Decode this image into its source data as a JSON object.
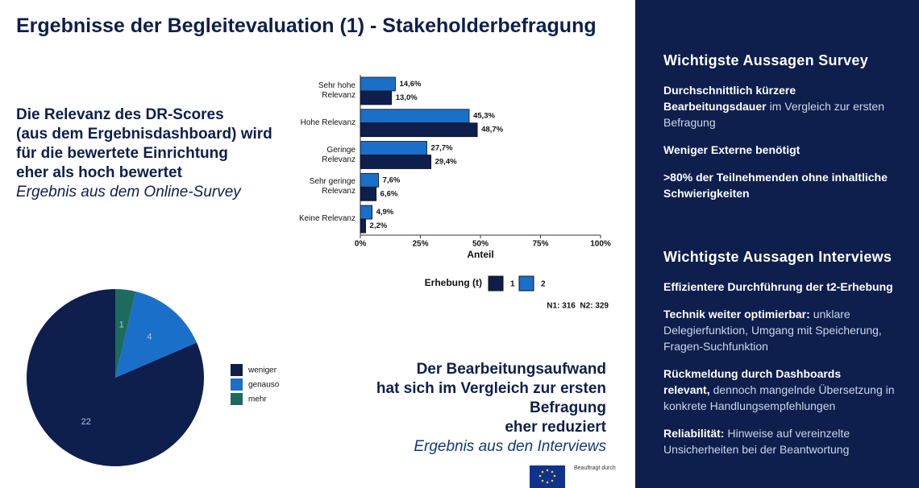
{
  "title": "Ergebnisse der Begleitevaluation (1) - Stakeholderbefragung",
  "left_text": {
    "lines": [
      "Die Relevanz des DR-Scores",
      "(aus dem Ergebnisdashboard) wird",
      "für die bewertete Einrichtung",
      "eher als hoch bewertet"
    ],
    "source": "Ergebnis aus dem Online-Survey"
  },
  "right_text": {
    "lines": [
      "Der Bearbeitungsaufwand",
      "hat sich im Vergleich zur ersten",
      "Befragung",
      "eher reduziert"
    ],
    "source": "Ergebnis aus den Interviews"
  },
  "panel": {
    "survey": {
      "heading": "Wichtigste Aussagen Survey",
      "items": [
        {
          "bold": "Durchschnittlich kürzere Bearbeitungsdauer",
          "text": "im Vergleich zur ersten Befragung"
        },
        {
          "bold": "Weniger Externe benötigt"
        },
        {
          "bold": ">80% der Teilnehmenden ohne inhaltliche Schwierigkeiten"
        }
      ]
    },
    "interviews": {
      "heading": "Wichtigste Aussagen Interviews",
      "items": [
        {
          "bold": "Effizientere Durchführung der t2-Erhebung"
        },
        {
          "bold": "Technik weiter optimierbar:",
          "text": "unklare Delegierfunktion, Umgang mit Speicherung, Fragen-Suchfunktion"
        },
        {
          "bold": "Rückmeldung durch Dashboards relevant,",
          "text": "dennoch mangelnde Übersetzung in konkrete Handlungsempfehlungen"
        },
        {
          "bold": "Reliabilität:",
          "text": "Hinweise auf vereinzelte Unsicherheiten bei der Beantwortung"
        }
      ]
    }
  },
  "footer": {
    "label": "Beauftragt durch"
  },
  "chart_data": [
    {
      "type": "bar",
      "orientation": "horizontal",
      "categories": [
        "Sehr hohe Relevanz",
        "Hohe Relevanz",
        "Geringe Relevanz",
        "Sehr geringe Relevanz",
        "Keine Relevanz"
      ],
      "series": [
        {
          "name": "1",
          "color": "#0e1f4d",
          "values": [
            13.0,
            48.7,
            29.4,
            6.6,
            2.2
          ],
          "value_labels": [
            "13,0%",
            "48,7%",
            "29,4%",
            "6,6%",
            "2,2%"
          ]
        },
        {
          "name": "2",
          "color": "#1a6fc9",
          "values": [
            14.6,
            45.3,
            27.7,
            7.6,
            4.9
          ],
          "value_labels": [
            "14,6%",
            "45,3%",
            "27,7%",
            "7,6%",
            "4,9%"
          ]
        }
      ],
      "xlabel": "Anteil",
      "xlim": [
        0,
        100
      ],
      "xticks": [
        {
          "value": 0,
          "label": "0%"
        },
        {
          "value": 25,
          "label": "25%"
        },
        {
          "value": 50,
          "label": "50%"
        },
        {
          "value": 75,
          "label": "75%"
        },
        {
          "value": 100,
          "label": "100%"
        }
      ],
      "legend_title": "Erhebung (t)",
      "legend": "bottom",
      "note": "N1: 316  N2: 329"
    },
    {
      "type": "pie",
      "categories": [
        "weniger",
        "genauso",
        "mehr"
      ],
      "values": [
        22,
        4,
        1
      ],
      "colors": [
        "#0e1f4d",
        "#1a6fc9",
        "#1d6b5f"
      ],
      "legend": "right"
    }
  ]
}
